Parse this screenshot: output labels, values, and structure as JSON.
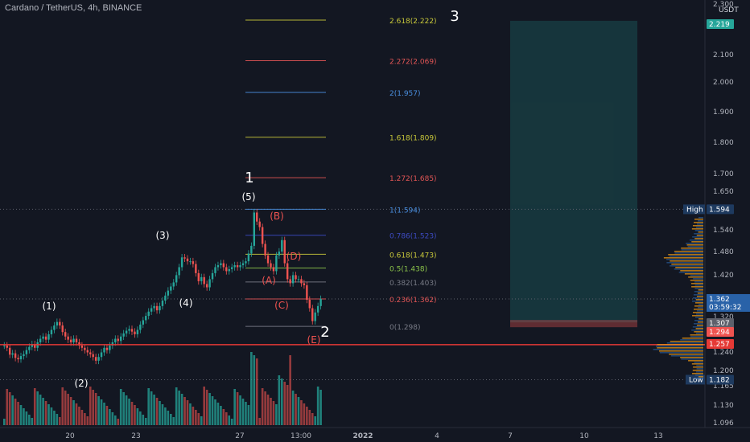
{
  "header": {
    "title": "Cardano / TetherUS, 4h, BINANCE"
  },
  "price_axis": {
    "currency": "USDT",
    "ticks": [
      "2.200",
      "2.100",
      "2.000",
      "1.900",
      "1.800",
      "1.700",
      "1.650",
      "1.594",
      "1.540",
      "1.480",
      "1.420",
      "1.362",
      "1.320",
      "1.307",
      "1.294",
      "1.257",
      "1.240",
      "1.200",
      "1.182",
      "1.165",
      "1.130",
      "1.096"
    ],
    "top_partial": "2.300",
    "badges": {
      "target": "2.219",
      "high": "1.594",
      "current": "1.362",
      "countdown": "03:59:32",
      "b1307": "1.307",
      "b1294": "1.294",
      "b1257": "1.257",
      "low": "1.182",
      "high_label": "High",
      "low_label": "Low"
    }
  },
  "time_axis": {
    "labels": [
      "20",
      "23",
      "27",
      "13:00",
      "2022",
      "4",
      "7",
      "10",
      "13"
    ]
  },
  "fib_levels": [
    {
      "label": "2.618(2.222)",
      "color": "#c8c83a"
    },
    {
      "label": "2.272(2.069)",
      "color": "#e05555"
    },
    {
      "label": "2(1.957)",
      "color": "#4a8fe0"
    },
    {
      "label": "1.618(1.809)",
      "color": "#c8c83a"
    },
    {
      "label": "1.272(1.685)",
      "color": "#e05555"
    },
    {
      "label": "1(1.594)",
      "color": "#4a8fe0"
    },
    {
      "label": "0.786(1.523)",
      "color": "#3d4bc2"
    },
    {
      "label": "0.618(1.473)",
      "color": "#c8c83a"
    },
    {
      "label": "0.5(1.438)",
      "color": "#8bc34a"
    },
    {
      "label": "0.382(1.403)",
      "color": "#787b86"
    },
    {
      "label": "0.236(1.362)",
      "color": "#e05555"
    },
    {
      "label": "0(1.298)",
      "color": "#787b86"
    }
  ],
  "wave_labels": {
    "w1": "(1)",
    "w2": "(2)",
    "w3": "(3)",
    "w4": "(4)",
    "w5": "(5)",
    "A": "(A)",
    "B": "(B)",
    "C": "(C)",
    "D": "(D)",
    "E": "(E)",
    "big1": "1",
    "big2": "2",
    "big3": "3"
  },
  "chart_data": {
    "type": "candlestick",
    "title": "Cardano / TetherUS, 4h, BINANCE",
    "ylabel": "USDT",
    "ylim": [
      1.096,
      2.3
    ],
    "y_scale": "log",
    "current_price": 1.362,
    "period_high": 1.594,
    "period_low": 1.182,
    "horizontal_line": 1.257,
    "target_zone": [
      1.307,
      2.219
    ],
    "fibonacci": [
      {
        "ratio": 2.618,
        "price": 2.222
      },
      {
        "ratio": 2.272,
        "price": 2.069
      },
      {
        "ratio": 2,
        "price": 1.957
      },
      {
        "ratio": 1.618,
        "price": 1.809
      },
      {
        "ratio": 1.272,
        "price": 1.685
      },
      {
        "ratio": 1,
        "price": 1.594
      },
      {
        "ratio": 0.786,
        "price": 1.523
      },
      {
        "ratio": 0.618,
        "price": 1.473
      },
      {
        "ratio": 0.5,
        "price": 1.438
      },
      {
        "ratio": 0.382,
        "price": 1.403
      },
      {
        "ratio": 0.236,
        "price": 1.362
      },
      {
        "ratio": 0,
        "price": 1.298
      }
    ],
    "closes": [
      1.255,
      1.25,
      1.235,
      1.238,
      1.228,
      1.225,
      1.232,
      1.236,
      1.245,
      1.252,
      1.258,
      1.25,
      1.262,
      1.27,
      1.275,
      1.268,
      1.28,
      1.29,
      1.3,
      1.308,
      1.3,
      1.285,
      1.275,
      1.268,
      1.262,
      1.27,
      1.262,
      1.255,
      1.25,
      1.245,
      1.24,
      1.236,
      1.23,
      1.222,
      1.23,
      1.24,
      1.25,
      1.245,
      1.255,
      1.262,
      1.27,
      1.265,
      1.275,
      1.282,
      1.288,
      1.292,
      1.286,
      1.28,
      1.29,
      1.302,
      1.312,
      1.322,
      1.332,
      1.34,
      1.345,
      1.335,
      1.345,
      1.358,
      1.37,
      1.382,
      1.392,
      1.402,
      1.42,
      1.44,
      1.465,
      1.462,
      1.455,
      1.455,
      1.448,
      1.425,
      1.405,
      1.415,
      1.398,
      1.39,
      1.41,
      1.425,
      1.44,
      1.445,
      1.45,
      1.44,
      1.43,
      1.435,
      1.44,
      1.445,
      1.44,
      1.445,
      1.45,
      1.455,
      1.475,
      1.495,
      1.585,
      1.56,
      1.545,
      1.5,
      1.47,
      1.45,
      1.44,
      1.43,
      1.47,
      1.48,
      1.51,
      1.45,
      1.41,
      1.4,
      1.42,
      1.41,
      1.41,
      1.4,
      1.395,
      1.36,
      1.34,
      1.31,
      1.33,
      1.345,
      1.362
    ]
  }
}
